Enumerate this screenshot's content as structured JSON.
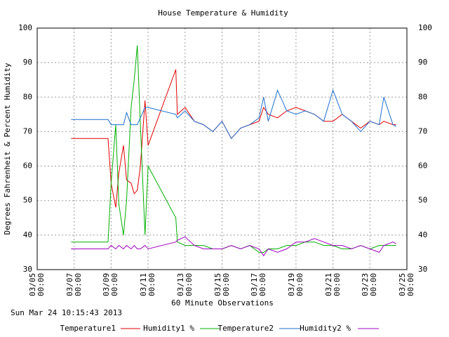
{
  "chart_data": {
    "type": "line",
    "title": "House Temperature & Humidity",
    "x_label": "60 Minute Observations",
    "y_label": "Degrees Fahrenheit & Percent Humidity",
    "timestamp": "Sun Mar 24 10:15:43 2013",
    "x": [
      "03/06 20:00",
      "03/08 20:00",
      "03/09 00:00",
      "03/09 06:00",
      "03/09 10:00",
      "03/09 16:00",
      "03/09 20:00",
      "03/10 02:00",
      "03/10 06:00",
      "03/10 10:00",
      "03/10 14:00",
      "03/10 20:00",
      "03/11 00:00",
      "03/12 12:00",
      "03/12 14:00",
      "03/13 00:00",
      "03/13 12:00",
      "03/14 00:00",
      "03/14 12:00",
      "03/15 00:00",
      "03/15 12:00",
      "03/16 00:00",
      "03/16 12:00",
      "03/17 00:00",
      "03/17 06:00",
      "03/17 12:00",
      "03/18 00:00",
      "03/18 12:00",
      "03/19 00:00",
      "03/19 12:00",
      "03/20 00:00",
      "03/20 12:00",
      "03/21 00:00",
      "03/21 12:00",
      "03/22 00:00",
      "03/22 12:00",
      "03/23 00:00",
      "03/23 12:00",
      "03/23 18:00",
      "03/24 06:00",
      "03/24 10:00"
    ],
    "series": [
      {
        "name": "Temperature1",
        "color": "#e00000",
        "values": [
          68,
          68,
          55,
          48,
          58,
          66,
          56,
          55,
          52,
          53,
          60,
          79,
          66,
          88,
          75,
          77,
          73,
          72,
          70,
          73,
          68,
          71,
          72,
          73,
          77,
          75,
          74,
          76,
          77,
          76,
          75,
          73,
          73,
          75,
          73,
          71,
          73,
          72,
          73,
          72,
          72
        ]
      },
      {
        "name": "Humidity1 %",
        "color": "#00b000",
        "values": [
          38,
          38,
          55,
          72,
          49,
          40,
          50,
          77,
          85,
          95,
          72,
          40,
          60,
          45,
          38,
          37,
          37,
          37,
          36,
          36,
          37,
          36,
          37,
          35,
          35,
          36,
          36,
          37,
          37,
          38,
          38,
          37,
          37,
          36,
          36,
          37,
          36,
          37,
          37,
          37,
          37
        ]
      },
      {
        "name": "Temperature2",
        "color": "#1a6fd0",
        "values": [
          73.5,
          73.5,
          72,
          72,
          72,
          72,
          75.5,
          72,
          72,
          72,
          74,
          77,
          77,
          75,
          74,
          76,
          73,
          72,
          70,
          73,
          68,
          71,
          72,
          74,
          80,
          73,
          82,
          76,
          75,
          76,
          75,
          73,
          82,
          75,
          73,
          70,
          73,
          72,
          80,
          72,
          71.5
        ]
      },
      {
        "name": "Humidity2 %",
        "color": "#a000c0",
        "values": [
          36,
          36,
          37,
          36,
          37,
          36,
          37,
          36,
          37,
          36,
          36,
          37,
          36,
          38,
          38.5,
          39.5,
          37,
          36,
          36,
          36,
          37,
          36,
          37,
          36,
          34,
          36,
          35,
          36,
          38,
          38,
          39,
          38,
          37,
          37,
          36,
          37,
          36,
          35,
          37,
          38,
          37.5
        ]
      }
    ],
    "xlim": [
      "03/05 00:00",
      "03/25 00:00"
    ],
    "xticks": [
      "03/05 00:00",
      "03/07 00:00",
      "03/09 00:00",
      "03/11 00:00",
      "03/13 00:00",
      "03/15 00:00",
      "03/17 00:00",
      "03/19 00:00",
      "03/21 00:00",
      "03/23 00:00",
      "03/25 00:00"
    ],
    "ylim": [
      30,
      100
    ],
    "yticks": [
      30,
      40,
      50,
      60,
      70,
      80,
      90,
      100
    ],
    "grid": true
  }
}
